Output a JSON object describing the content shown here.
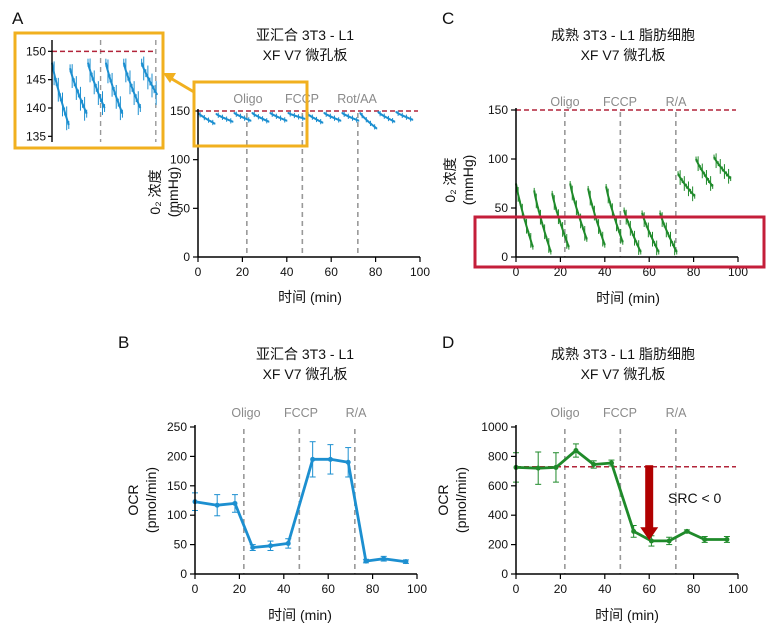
{
  "panels": {
    "A": {
      "letter": "A",
      "title_line1": "亚汇合 3T3 - L1",
      "title_line2": "XF V7 微孔板",
      "xlabel": "时间 (min)",
      "ylabel_line1": "0₂ 浓度",
      "ylabel_line2": "(mmHg)",
      "phases": [
        "Oligo",
        "FCCP",
        "Rot/AA"
      ]
    },
    "B": {
      "letter": "B",
      "title_line1": "亚汇合 3T3 - L1",
      "title_line2": "XF V7 微孔板",
      "xlabel": "时间 (min)",
      "ylabel_line1": "OCR",
      "ylabel_line2": "(pmol/min)",
      "phases": [
        "Oligo",
        "FCCP",
        "R/A"
      ]
    },
    "C": {
      "letter": "C",
      "title_line1": "成熟 3T3 - L1 脂肪细胞",
      "title_line2": "XF V7 微孔板",
      "xlabel": "时间 (min)",
      "ylabel_line1": "0₂ 浓度",
      "ylabel_line2": "(mmHg)",
      "phases": [
        "Oligo",
        "FCCP",
        "R/A"
      ]
    },
    "D": {
      "letter": "D",
      "title_line1": "成熟 3T3 - L1 脂肪细胞",
      "title_line2": "XF V7 微孔板",
      "xlabel": "时间 (min)",
      "ylabel_line1": "OCR",
      "ylabel_line2": "(pmol/min)",
      "phases": [
        "Oligo",
        "FCCP",
        "R/A"
      ],
      "annotation": "SRC < 0"
    }
  },
  "colors": {
    "blue": "#1c8fd0",
    "green": "#1f8a2a",
    "dashed_ref": "#b2243a",
    "phase_line": "#999999",
    "inset_border": "#f1b01f",
    "red_box": "#c41e3a",
    "arrow": "#b00000"
  },
  "chart_data": [
    {
      "panel": "A",
      "type": "line",
      "title": "亚汇合 3T3 - L1 XF V7 微孔板",
      "xlabel": "时间 (min)",
      "ylabel": "0₂ 浓度 (mmHg)",
      "xlim": [
        0,
        100
      ],
      "ylim": [
        0,
        150
      ],
      "xticks": [
        0,
        20,
        40,
        60,
        80,
        100
      ],
      "yticks": [
        0,
        50,
        100,
        150
      ],
      "reference_line_y": 150,
      "injections": [
        22,
        47,
        72
      ],
      "cycles": [
        {
          "start": 0,
          "end": 7.6,
          "high": 148,
          "low": 137
        },
        {
          "start": 8.2,
          "end": 15.7,
          "high": 147,
          "low": 139
        },
        {
          "start": 16.3,
          "end": 23.8,
          "high": 148,
          "low": 140
        },
        {
          "start": 24.4,
          "end": 31.9,
          "high": 148,
          "low": 139
        },
        {
          "start": 32.5,
          "end": 40.0,
          "high": 148,
          "low": 140
        },
        {
          "start": 40.6,
          "end": 48.1,
          "high": 148,
          "low": 142
        },
        {
          "start": 48.7,
          "end": 56.2,
          "high": 148,
          "low": 138
        },
        {
          "start": 56.8,
          "end": 64.3,
          "high": 148,
          "low": 140
        },
        {
          "start": 64.9,
          "end": 72.4,
          "high": 148,
          "low": 140
        },
        {
          "start": 73.0,
          "end": 80.5,
          "high": 148,
          "low": 132
        },
        {
          "start": 81.1,
          "end": 88.6,
          "high": 149,
          "low": 139
        },
        {
          "start": 89.2,
          "end": 96.7,
          "high": 149,
          "low": 141
        }
      ],
      "inset": {
        "xlim": [
          0,
          48
        ],
        "ylim": [
          134,
          152
        ],
        "yticks": [
          135,
          140,
          145,
          150
        ],
        "reference_line_y": 150,
        "injections": [
          22,
          47
        ]
      }
    },
    {
      "panel": "B",
      "type": "line",
      "title": "亚汇合 3T3 - L1 XF V7 微孔板",
      "xlabel": "时间 (min)",
      "ylabel": "OCR (pmol/min)",
      "xlim": [
        0,
        100
      ],
      "ylim": [
        0,
        250
      ],
      "xticks": [
        0,
        20,
        40,
        60,
        80,
        100
      ],
      "yticks": [
        0,
        50,
        100,
        150,
        200,
        250
      ],
      "injections": [
        22,
        47,
        72
      ],
      "x": [
        0,
        10,
        18,
        26,
        34,
        42,
        53,
        61,
        69,
        77,
        85,
        95
      ],
      "y": [
        123,
        117,
        120,
        45,
        48,
        52,
        195,
        195,
        190,
        22,
        26,
        21
      ],
      "err": [
        15,
        18,
        15,
        5,
        8,
        8,
        30,
        25,
        25,
        3,
        4,
        3
      ]
    },
    {
      "panel": "C",
      "type": "line",
      "title": "成熟 3T3 - L1 脂肪细胞 XF V7 微孔板",
      "xlabel": "时间 (min)",
      "ylabel": "0₂ 浓度 (mmHg)",
      "xlim": [
        0,
        100
      ],
      "ylim": [
        0,
        150
      ],
      "xticks": [
        0,
        20,
        40,
        60,
        80,
        100
      ],
      "yticks": [
        0,
        50,
        100,
        150
      ],
      "reference_line_y": 150,
      "injections": [
        22,
        47,
        72
      ],
      "cycles": [
        {
          "start": 0,
          "end": 7.6,
          "high": 75,
          "low": 10
        },
        {
          "start": 8.2,
          "end": 15.7,
          "high": 68,
          "low": 5
        },
        {
          "start": 16.3,
          "end": 23.8,
          "high": 65,
          "low": 10
        },
        {
          "start": 24.4,
          "end": 31.9,
          "high": 75,
          "low": 18
        },
        {
          "start": 32.5,
          "end": 40.0,
          "high": 70,
          "low": 12
        },
        {
          "start": 40.6,
          "end": 48.1,
          "high": 72,
          "low": 15
        },
        {
          "start": 48.7,
          "end": 56.2,
          "high": 48,
          "low": 5
        },
        {
          "start": 56.8,
          "end": 64.3,
          "high": 45,
          "low": 5
        },
        {
          "start": 64.9,
          "end": 72.4,
          "high": 45,
          "low": 5
        },
        {
          "start": 73.0,
          "end": 80.5,
          "high": 85,
          "low": 62
        },
        {
          "start": 81.1,
          "end": 88.6,
          "high": 100,
          "low": 72
        },
        {
          "start": 89.2,
          "end": 96.7,
          "high": 102,
          "low": 80
        }
      ]
    },
    {
      "panel": "D",
      "type": "line",
      "title": "成熟 3T3 - L1 脂肪细胞 XF V7 微孔板",
      "xlabel": "时间 (min)",
      "ylabel": "OCR (pmol/min)",
      "xlim": [
        0,
        100
      ],
      "ylim": [
        0,
        1000
      ],
      "xticks": [
        0,
        20,
        40,
        60,
        80,
        100
      ],
      "yticks": [
        0,
        200,
        400,
        600,
        800,
        1000
      ],
      "reference_line_y": 730,
      "injections": [
        22,
        47,
        72
      ],
      "x": [
        0,
        10,
        18,
        27,
        35,
        43,
        53,
        61,
        69,
        77,
        85,
        95
      ],
      "y": [
        725,
        720,
        725,
        840,
        745,
        755,
        290,
        225,
        225,
        290,
        235,
        235
      ],
      "err": [
        100,
        110,
        100,
        45,
        25,
        20,
        40,
        35,
        25,
        10,
        20,
        20
      ],
      "arrow": {
        "x": 60,
        "from_y": 740,
        "to_y": 230
      }
    }
  ]
}
